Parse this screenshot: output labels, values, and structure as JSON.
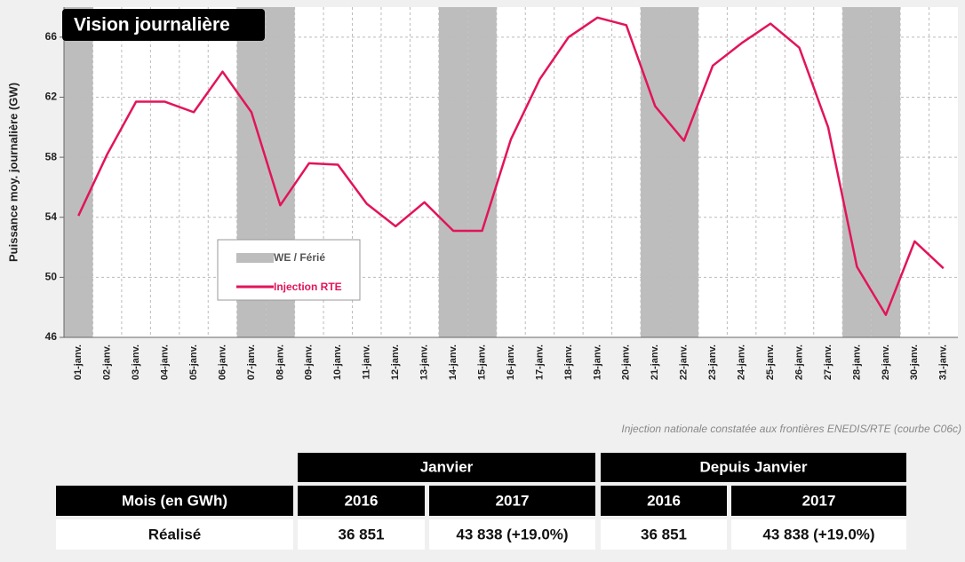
{
  "chart_data": {
    "type": "line",
    "title": "Vision journalière",
    "y_label": "Puissance moy. journalière (GW)",
    "categories": [
      "01-janv.",
      "02-janv.",
      "03-janv.",
      "04-janv.",
      "05-janv.",
      "06-janv.",
      "07-janv.",
      "08-janv.",
      "09-janv.",
      "10-janv.",
      "11-janv.",
      "12-janv.",
      "13-janv.",
      "14-janv.",
      "15-janv.",
      "16-janv.",
      "17-janv.",
      "18-janv.",
      "19-janv.",
      "20-janv.",
      "21-janv.",
      "22-janv.",
      "23-janv.",
      "24-janv.",
      "25-janv.",
      "26-janv.",
      "27-janv.",
      "28-janv.",
      "29-janv.",
      "30-janv.",
      "31-janv."
    ],
    "series": [
      {
        "name": "Injection RTE",
        "color": "#e2145a",
        "values": [
          54.1,
          58.2,
          61.7,
          61.7,
          61.0,
          63.7,
          61.0,
          54.8,
          57.6,
          57.5,
          54.9,
          53.4,
          55.0,
          53.1,
          53.1,
          59.2,
          63.2,
          66.0,
          67.3,
          66.8,
          61.4,
          59.1,
          64.1,
          65.6,
          66.9,
          65.3,
          60.0,
          50.7,
          47.5,
          52.4,
          50.6
        ]
      }
    ],
    "shading": {
      "name": "WE / Férié",
      "color": "#bdbdbd",
      "indices": [
        0,
        6,
        7,
        13,
        14,
        20,
        21,
        27,
        28
      ]
    },
    "ylim": [
      46,
      68
    ],
    "yticks": [
      46,
      50,
      54,
      58,
      62,
      66
    ],
    "grid": true,
    "note": "Injection nationale constatée aux frontières ENEDIS/RTE (courbe C06c)"
  },
  "table": {
    "group_headers": [
      "Janvier",
      "Depuis Janvier"
    ],
    "columns": [
      "Mois (en GWh)",
      "2016",
      "2017",
      "2016",
      "2017"
    ],
    "rows": [
      [
        "Réalisé",
        "36 851",
        "43 838 (+19.0%)",
        "36 851",
        "43 838 (+19.0%)"
      ]
    ]
  }
}
